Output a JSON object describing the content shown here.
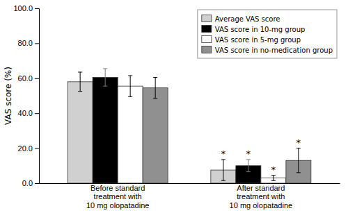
{
  "chart_data": {
    "type": "bar",
    "categories": [
      "Before standard\ntreatment with\n10 mg olopatadine",
      "After standard\ntreatment with\n10 mg olopatadine"
    ],
    "series": [
      {
        "name": "Average VAS score",
        "color": "#d0d0d0",
        "values": [
          58.0,
          7.5
        ],
        "errors": [
          5.5,
          6.0
        ]
      },
      {
        "name": "VAS score in 10-mg group",
        "color": "#000000",
        "values": [
          60.5,
          10.0
        ],
        "errors": [
          5.0,
          3.5
        ]
      },
      {
        "name": "VAS score in 5-mg group",
        "color": "#ffffff",
        "values": [
          55.5,
          3.0
        ],
        "errors": [
          6.0,
          1.5
        ]
      },
      {
        "name": "VAS score in no-medication group",
        "color": "#909090",
        "values": [
          54.5,
          13.0
        ],
        "errors": [
          6.0,
          7.0
        ]
      }
    ],
    "annotations": [
      {
        "text": "*",
        "category": 1,
        "series": 0
      },
      {
        "text": "*",
        "category": 1,
        "series": 1
      },
      {
        "text": "*",
        "category": 1,
        "series": 2
      },
      {
        "text": "*",
        "category": 1,
        "series": 3
      }
    ],
    "ylabel": "VAS score (%)",
    "ylim": [
      0,
      100
    ],
    "yticks": [
      {
        "value": 0,
        "label": "0.0"
      },
      {
        "value": 20,
        "label": "20.0"
      },
      {
        "value": 40,
        "label": "40.0"
      },
      {
        "value": 60,
        "label": "60.0"
      },
      {
        "value": 80,
        "label": "80.0"
      },
      {
        "value": 100,
        "label": "100.0"
      }
    ],
    "grid": false,
    "legend": "upper right"
  }
}
